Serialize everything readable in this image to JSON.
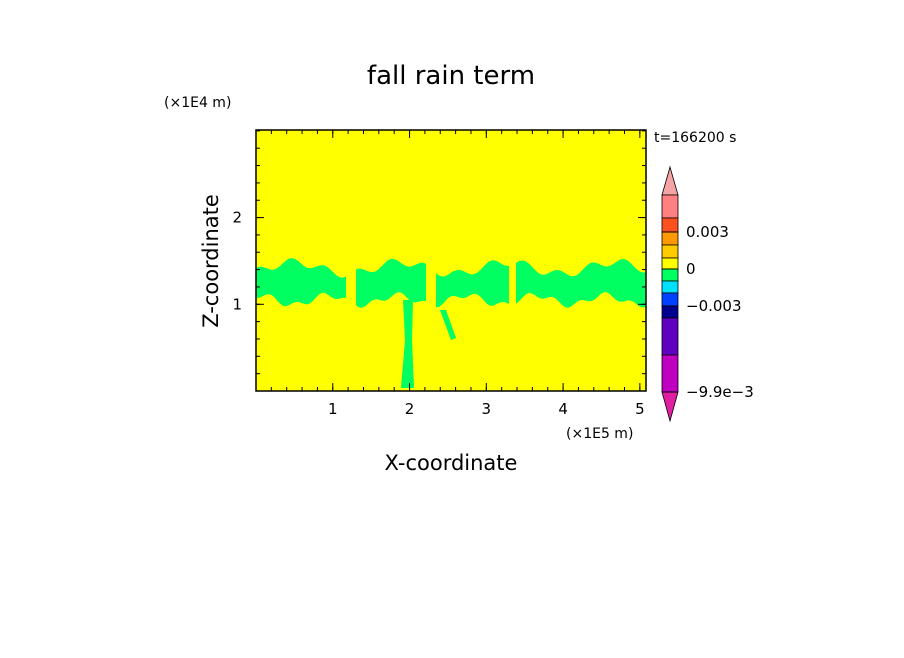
{
  "chart_data": {
    "type": "contour",
    "title": "fall rain term",
    "xlabel": "X-coordinate",
    "ylabel": "Z-coordinate",
    "x_unit": "(×1E5 m)",
    "y_unit": "(×1E4 m)",
    "time_label": "t=166200 s",
    "xlim": [
      0,
      5.08
    ],
    "ylim": [
      0,
      3.01
    ],
    "xticks": [
      1,
      2,
      3,
      4,
      5
    ],
    "yticks": [
      1,
      2
    ],
    "background_color": "#ffff00",
    "region_color": "#00ff60",
    "colorbar": {
      "colors": [
        "#f4a4a4",
        "#ff8080",
        "#ff5020",
        "#ff9900",
        "#ffcc00",
        "#ffff00",
        "#00ff60",
        "#00e0ff",
        "#0040ff",
        "#000090",
        "#6000c0",
        "#c000c0",
        "#e020a0"
      ],
      "ticks": [
        0.003,
        0,
        {
          "value": -0.003,
          "label": "−0.003"
        },
        {
          "value": -0.0099,
          "label": "−9.9e−3"
        }
      ]
    }
  }
}
